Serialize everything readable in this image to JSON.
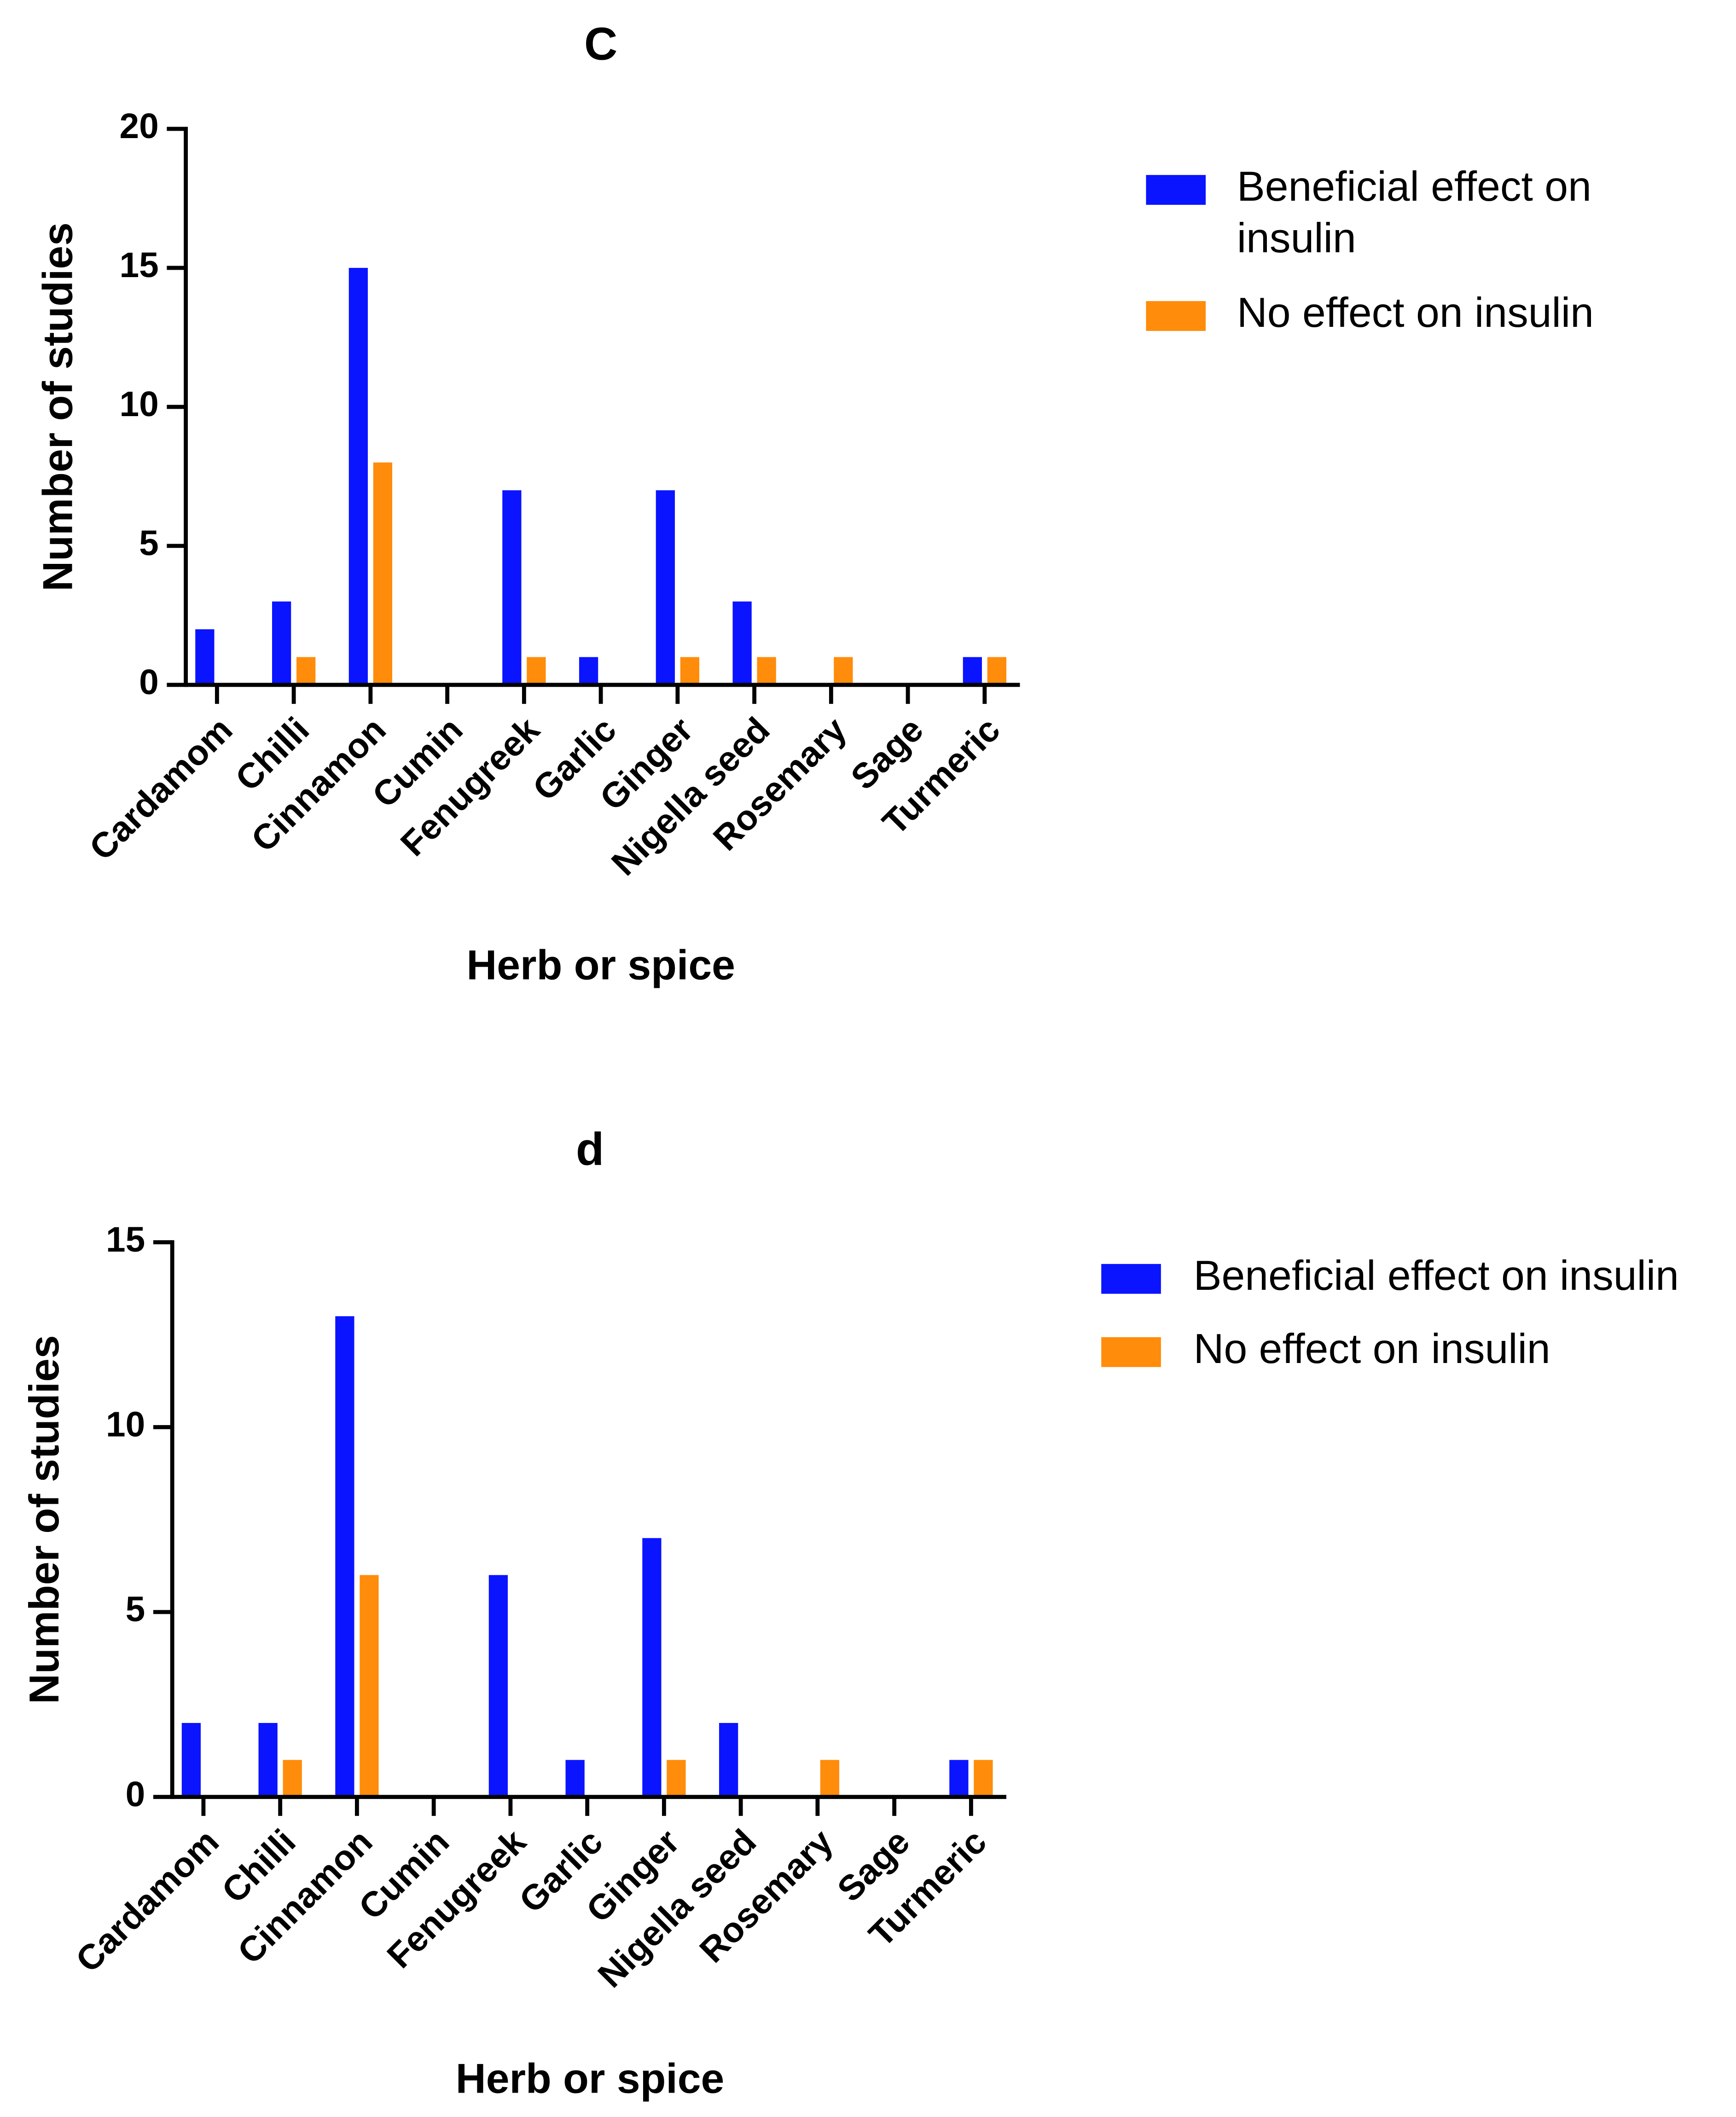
{
  "chart_data": [
    {
      "type": "bar",
      "title": "C",
      "xlabel": "Herb or spice",
      "ylabel": "Number of studies",
      "categories": [
        "Cardamom",
        "Chilli",
        "Cinnamon",
        "Cumin",
        "Fenugreek",
        "Garlic",
        "Ginger",
        "Nigella seed",
        "Rosemary",
        "Sage",
        "Turmeric"
      ],
      "series": [
        {
          "name": "Beneficial effect on insulin",
          "color": "#0a14ff",
          "values": [
            2,
            3,
            15,
            0,
            7,
            1,
            7,
            3,
            0,
            0,
            1
          ]
        },
        {
          "name": "No effect on insulin",
          "color": "#ff8c0a",
          "values": [
            0,
            1,
            8,
            0,
            1,
            0,
            1,
            1,
            1,
            0,
            1
          ]
        }
      ],
      "ylim": [
        0,
        20
      ],
      "yticks": [
        0,
        5,
        10,
        15,
        20
      ]
    },
    {
      "type": "bar",
      "title": "d",
      "xlabel": "Herb or spice",
      "ylabel": "Number of studies",
      "categories": [
        "Cardamom",
        "Chilli",
        "Cinnamon",
        "Cumin",
        "Fenugreek",
        "Garlic",
        "Ginger",
        "Nigella seed",
        "Rosemary",
        "Sage",
        "Turmeric"
      ],
      "series": [
        {
          "name": "Beneficial effect on insulin",
          "color": "#0a14ff",
          "values": [
            2,
            2,
            13,
            0,
            6,
            1,
            7,
            2,
            0,
            0,
            1
          ]
        },
        {
          "name": "No effect on insulin",
          "color": "#ff8c0a",
          "values": [
            0,
            1,
            6,
            0,
            0,
            0,
            1,
            0,
            1,
            0,
            1
          ]
        }
      ],
      "ylim": [
        0,
        15
      ],
      "yticks": [
        0,
        5,
        10,
        15
      ]
    }
  ]
}
